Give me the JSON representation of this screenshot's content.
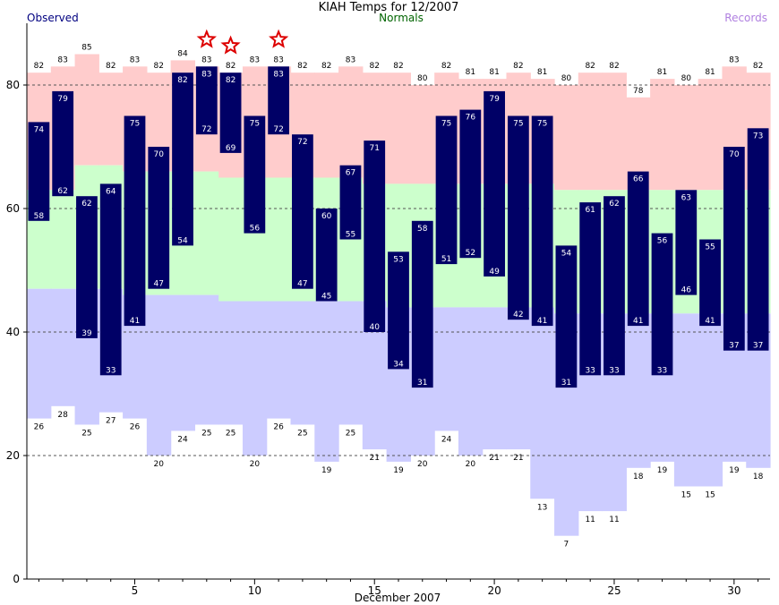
{
  "chart_data": {
    "type": "bar",
    "title": "KIAH Temps for 12/2007",
    "legend": {
      "observed": "Observed",
      "normals": "Normals",
      "records": "Records"
    },
    "xlabel": "December 2007",
    "ylabel": "",
    "xlim": [
      1,
      31
    ],
    "ylim": [
      0,
      90
    ],
    "x_ticks": [
      5,
      10,
      15,
      20,
      25,
      30
    ],
    "y_ticks": [
      0,
      20,
      40,
      60,
      80
    ],
    "grid": "dashed at 20, 40, 60, 80",
    "days": [
      1,
      2,
      3,
      4,
      5,
      6,
      7,
      8,
      9,
      10,
      11,
      12,
      13,
      14,
      15,
      16,
      17,
      18,
      19,
      20,
      21,
      22,
      23,
      24,
      25,
      26,
      27,
      28,
      29,
      30,
      31
    ],
    "series": [
      {
        "name": "Observed",
        "high": [
          74,
          79,
          62,
          64,
          75,
          70,
          82,
          83,
          82,
          75,
          83,
          72,
          60,
          67,
          71,
          53,
          58,
          75,
          76,
          79,
          75,
          75,
          54,
          61,
          62,
          66,
          56,
          63,
          55,
          70,
          73
        ],
        "low": [
          58,
          62,
          39,
          33,
          41,
          47,
          54,
          72,
          69,
          56,
          72,
          47,
          45,
          55,
          40,
          34,
          31,
          51,
          52,
          49,
          42,
          41,
          31,
          33,
          33,
          41,
          33,
          46,
          41,
          37,
          37
        ]
      },
      {
        "name": "Normals",
        "high": [
          63,
          63,
          67,
          67,
          66,
          66,
          66,
          66,
          65,
          65,
          65,
          65,
          65,
          65,
          64,
          64,
          64,
          64,
          64,
          64,
          64,
          64,
          63,
          63,
          63,
          63,
          63,
          63,
          63,
          63,
          63
        ],
        "low": [
          47,
          47,
          47,
          47,
          46,
          46,
          46,
          46,
          45,
          45,
          45,
          45,
          45,
          45,
          45,
          44,
          44,
          44,
          44,
          44,
          44,
          44,
          43,
          43,
          43,
          43,
          43,
          43,
          43,
          43,
          43
        ]
      },
      {
        "name": "Records",
        "high": [
          82,
          83,
          85,
          82,
          83,
          82,
          84,
          83,
          82,
          83,
          83,
          82,
          82,
          83,
          82,
          82,
          80,
          82,
          81,
          81,
          82,
          81,
          80,
          82,
          82,
          78,
          81,
          80,
          81,
          83,
          82
        ],
        "low": [
          26,
          28,
          25,
          27,
          26,
          20,
          24,
          25,
          25,
          20,
          26,
          25,
          19,
          25,
          21,
          19,
          20,
          24,
          20,
          21,
          21,
          13,
          7,
          11,
          11,
          18,
          19,
          15,
          15,
          19,
          18
        ]
      }
    ],
    "record_high_days": [
      8,
      9,
      11
    ]
  }
}
